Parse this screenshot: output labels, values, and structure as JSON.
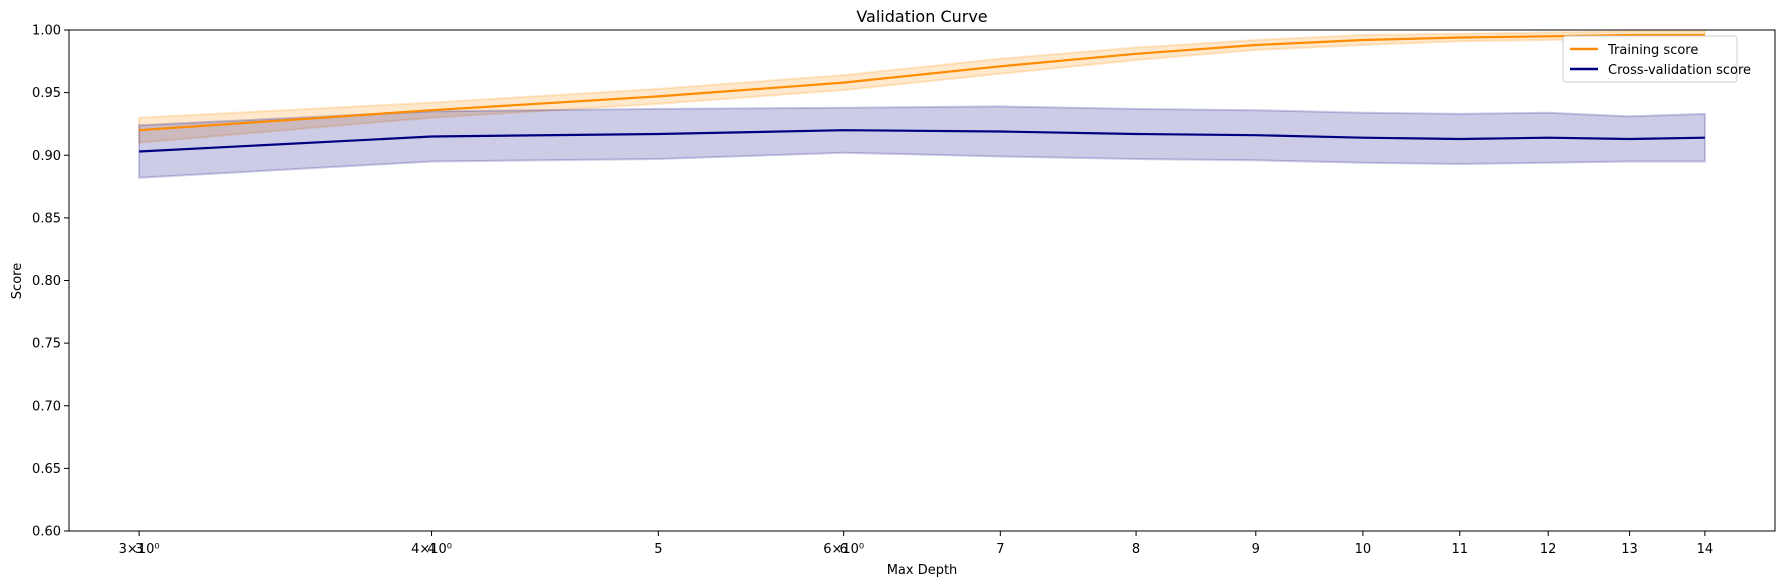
{
  "chart_data": {
    "type": "line",
    "title": "Validation Curve",
    "xlabel": "Max Depth",
    "ylabel": "Score",
    "xscale": "log",
    "xlim": [
      2.8,
      15.0
    ],
    "ylim": [
      0.6,
      1.0
    ],
    "grid": false,
    "legend_position": "top-right",
    "x": [
      3,
      4,
      5,
      6,
      7,
      8,
      9,
      10,
      11,
      12,
      13,
      14
    ],
    "x_tick_labels": [
      "3×10⁰",
      "4×10⁰",
      "5",
      "6×10⁰",
      "7",
      "8",
      "9",
      "10",
      "11",
      "12",
      "13",
      "14"
    ],
    "x_tick_label_overlays": [
      {
        "x": 3,
        "label": "3"
      },
      {
        "x": 4,
        "label": "4"
      },
      {
        "x": 6,
        "label": "6"
      }
    ],
    "yticks": [
      "0.60",
      "0.65",
      "0.70",
      "0.75",
      "0.80",
      "0.85",
      "0.90",
      "0.95",
      "1.00"
    ],
    "series": [
      {
        "name": "Training score",
        "color": "#ff8c00",
        "values": [
          0.92,
          0.936,
          0.947,
          0.958,
          0.971,
          0.981,
          0.988,
          0.992,
          0.994,
          0.995,
          0.996,
          0.996
        ],
        "std": [
          0.01,
          0.006,
          0.006,
          0.006,
          0.006,
          0.005,
          0.004,
          0.004,
          0.003,
          0.003,
          0.003,
          0.003
        ]
      },
      {
        "name": "Cross-validation score",
        "color": "#000080",
        "values": [
          0.903,
          0.915,
          0.917,
          0.92,
          0.919,
          0.917,
          0.916,
          0.914,
          0.913,
          0.914,
          0.913,
          0.914
        ],
        "std": [
          0.021,
          0.02,
          0.02,
          0.018,
          0.02,
          0.02,
          0.02,
          0.02,
          0.02,
          0.02,
          0.018,
          0.019
        ]
      }
    ]
  }
}
